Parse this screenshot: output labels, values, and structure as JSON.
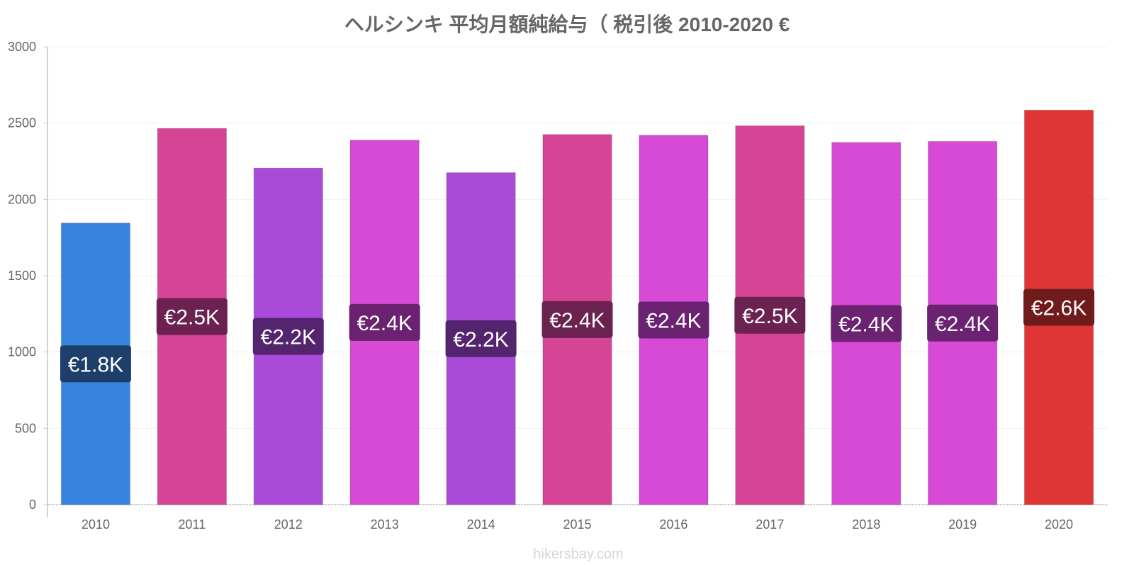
{
  "chart_data": {
    "type": "bar",
    "title": "ヘルシンキ 平均月額純給与（ 税引後 2010-2020 €",
    "xlabel": "",
    "ylabel": "",
    "categories": [
      "2010",
      "2011",
      "2012",
      "2013",
      "2014",
      "2015",
      "2016",
      "2017",
      "2018",
      "2019",
      "2020"
    ],
    "values": [
      1845,
      2465,
      2205,
      2388,
      2175,
      2425,
      2420,
      2482,
      2373,
      2380,
      2585
    ],
    "data_labels": [
      "€1.8K",
      "€2.5K",
      "€2.2K",
      "€2.4K",
      "€2.2K",
      "€2.4K",
      "€2.4K",
      "€2.5K",
      "€2.4K",
      "€2.4K",
      "€2.6K"
    ],
    "ylim": [
      0,
      3000
    ],
    "yticks": [
      0,
      500,
      1000,
      1500,
      2000,
      2500,
      3000
    ],
    "grid": true,
    "legend": "none",
    "bar_colors": [
      "#3884e0",
      "#d64496",
      "#a94ad9",
      "#d64ad6",
      "#a94ad9",
      "#d64496",
      "#d64ad6",
      "#d64496",
      "#d64ad6",
      "#d64ad6",
      "#e03535"
    ],
    "label_bg_colors": [
      "#1f3f6b",
      "#6b2250",
      "#55246f",
      "#6b2270",
      "#55246f",
      "#6b2250",
      "#6b2270",
      "#6b2250",
      "#6b2270",
      "#6b2270",
      "#701b1b"
    ]
  },
  "watermark": "hikersbay.com"
}
